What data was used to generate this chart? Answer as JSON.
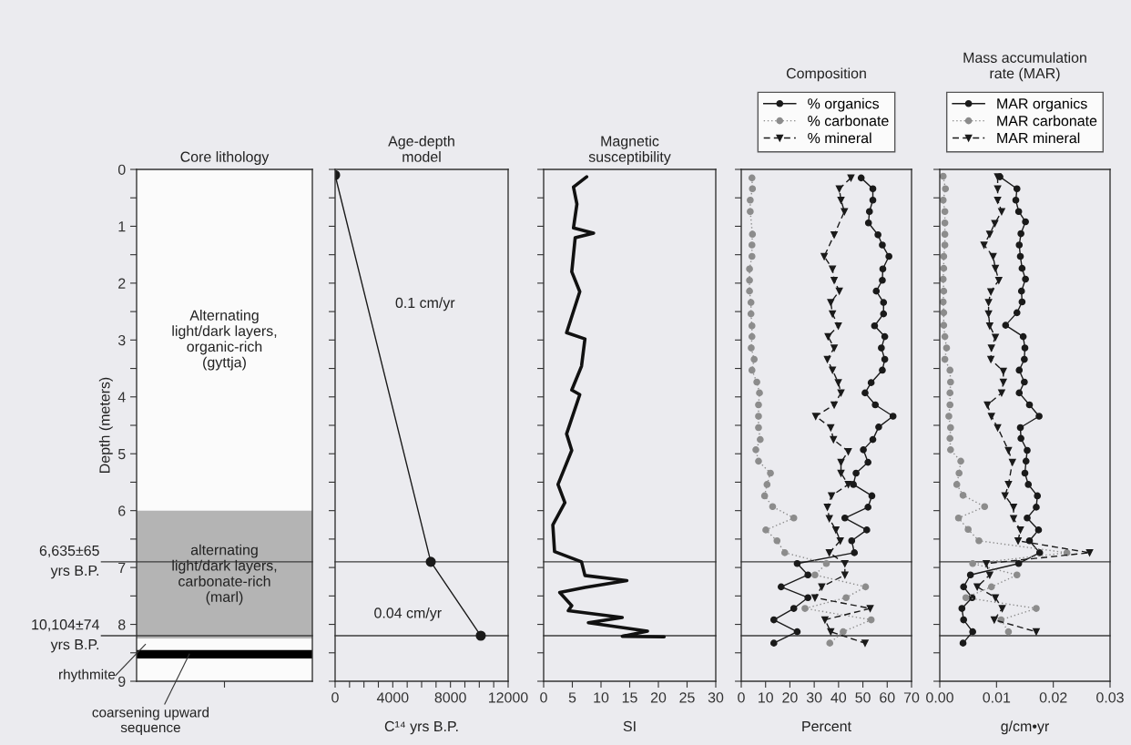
{
  "chart_data": [
    {
      "type": "bar",
      "title": "Core lithology",
      "stacked": true,
      "categories": [
        null
      ],
      "series": [
        {
          "name": "Alternating\nlight/dark layers,\norganic-rich\n(gyttja)",
          "color": "#fbfbfb",
          "values": [
            6.0
          ]
        },
        {
          "name": "alternating\nlight/dark layers,\ncarbonate-rich\n(marl)",
          "color": "#b4b4b4",
          "values": [
            2.25
          ]
        },
        {
          "name": "rhythmite",
          "color": "#fbfbfb",
          "values": [
            0.2
          ]
        },
        {
          "name": "coarsening upward\nsequence",
          "color": "#000000",
          "values": [
            0.15
          ]
        },
        {
          "color": "#fbfbfb",
          "values": [
            0.4
          ]
        }
      ],
      "ylabel": "Depth (meters)",
      "ylim": [
        9,
        0
      ],
      "yticks": [
        0,
        {
          "value": 0.5,
          "label": null
        },
        1,
        {
          "value": 1.5,
          "label": null
        },
        2,
        {
          "value": 2.5,
          "label": null
        },
        3,
        {
          "value": 3.5,
          "label": null
        },
        4,
        {
          "value": 4.5,
          "label": null
        },
        5,
        {
          "value": 5.5,
          "label": null
        },
        6,
        {
          "value": 6.5,
          "label": null
        },
        7,
        {
          "value": 7.5,
          "label": null
        },
        8,
        {
          "value": 8.5,
          "label": null
        },
        9
      ],
      "tick_labels": "y",
      "ref_lines": [
        {
          "axis": "y",
          "value": 6.9,
          "label": "6,635±65\nyrs B.P.",
          "color": "#3c3c3c"
        },
        {
          "axis": "y",
          "value": 8.2,
          "label": "10,104±74\nyrs B.P.",
          "color": "#3c3c3c"
        }
      ]
    },
    {
      "type": "line",
      "title": "Age-depth\nmodel",
      "xlabel": "C¹⁴ yrs B.P.",
      "xlim": [
        0,
        12000
      ],
      "ylim": [
        9,
        0
      ],
      "xticks": [
        0,
        {
          "value": 1000,
          "label": null
        },
        {
          "value": 2000,
          "label": null
        },
        {
          "value": 3000,
          "label": null
        },
        4000,
        {
          "value": 5000,
          "label": null
        },
        {
          "value": 6000,
          "label": null
        },
        {
          "value": 7000,
          "label": null
        },
        8000,
        {
          "value": 9000,
          "label": null
        },
        {
          "value": 10000,
          "label": null
        },
        {
          "value": 11000,
          "label": null
        },
        12000
      ],
      "yticks": [
        0,
        0.5,
        1,
        1.5,
        2,
        2.5,
        3,
        3.5,
        4,
        4.5,
        5,
        5.5,
        6,
        6.5,
        7,
        7.5,
        8,
        8.5,
        9
      ],
      "tick_labels": "x",
      "marker": "circle",
      "line_style": "solid",
      "series": [
        {
          "color": "#1a1a1a",
          "x": [
            0,
            6635,
            10104
          ],
          "values": [
            0.1,
            6.9,
            8.2
          ]
        }
      ],
      "ref_lines": [
        {
          "axis": "y",
          "value": 6.9,
          "color": "#3c3c3c"
        },
        {
          "axis": "y",
          "value": 8.2,
          "color": "#3c3c3c"
        }
      ],
      "annotations": [
        "0.1 cm/yr",
        "0.04 cm/yr"
      ]
    },
    {
      "type": "line",
      "title": "Magnetic\nsusceptibility",
      "xlabel": "SI",
      "xlim": [
        0,
        30
      ],
      "ylim": [
        9,
        0
      ],
      "xticks": [
        0,
        5,
        10,
        15,
        20,
        25,
        30
      ],
      "yticks": [
        0,
        0.5,
        1,
        1.5,
        2,
        2.5,
        3,
        3.5,
        4,
        4.5,
        5,
        5.5,
        6,
        6.5,
        7,
        7.5,
        8,
        8.5,
        9
      ],
      "tick_labels": "x",
      "marker": "none",
      "line_style": "solid",
      "series": [
        {
          "color": "#111111",
          "x": [
            7.5,
            5.2,
            5.8,
            5.2,
            8.7,
            5.5,
            4.9,
            6.3,
            4.0,
            7.2,
            6.6,
            4.9,
            6.3,
            4.0,
            4.9,
            2.5,
            3.7,
            1.6,
            1.9,
            6.6,
            7.2,
            14.5,
            7.2,
            2.8,
            4.9,
            4.3,
            13.7,
            7.8,
            18.1,
            13.7,
            21
          ],
          "values": [
            0.13,
            0.31,
            0.61,
            1.03,
            1.12,
            1.2,
            1.8,
            2.15,
            2.87,
            2.98,
            3.46,
            3.88,
            3.96,
            4.65,
            4.94,
            5.54,
            5.86,
            6.25,
            6.72,
            6.9,
            7.14,
            7.23,
            7.35,
            7.44,
            7.67,
            7.76,
            7.88,
            7.97,
            8.12,
            8.21,
            8.22
          ]
        }
      ],
      "ref_lines": [
        {
          "axis": "y",
          "value": 6.9,
          "color": "#3c3c3c"
        },
        {
          "axis": "y",
          "value": 8.2,
          "color": "#3c3c3c"
        }
      ]
    },
    {
      "type": "line",
      "title": "Composition",
      "xlabel": "Percent",
      "xlim": [
        0,
        70
      ],
      "ylim": [
        9,
        0
      ],
      "xticks": [
        0,
        10,
        20,
        30,
        40,
        50,
        60,
        70
      ],
      "yticks": [
        0,
        0.5,
        1,
        1.5,
        2,
        2.5,
        3,
        3.5,
        4,
        4.5,
        5,
        5.5,
        6,
        6.5,
        7,
        7.5,
        8,
        8.5,
        9
      ],
      "tick_labels": "x",
      "legend": "top",
      "series": [
        {
          "name": "% organics",
          "color": "#1a1a1a",
          "marker": "circle",
          "line_style": "solid",
          "x": [
            49.3,
            54.1,
            54.1,
            52.7,
            52.3,
            56.2,
            58.0,
            60.7,
            58.2,
            58.0,
            55.5,
            58.5,
            58.5,
            54.8,
            59.0,
            57.6,
            59.0,
            58.0,
            53.4,
            50.9,
            55.1,
            62.4,
            56.5,
            54.1,
            50.2,
            52.1,
            47.2,
            46.1,
            53.7,
            52.1,
            42.6,
            51.6,
            45.4,
            46.5,
            23.0,
            27.4,
            16.4,
            27.4,
            21.6,
            13.4,
            23.0,
            13.4
          ],
          "values": [
            0.15,
            0.34,
            0.54,
            0.74,
            0.94,
            1.15,
            1.33,
            1.53,
            1.75,
            1.95,
            2.14,
            2.34,
            2.54,
            2.75,
            2.94,
            3.14,
            3.34,
            3.53,
            3.75,
            3.93,
            4.14,
            4.34,
            4.53,
            4.75,
            4.93,
            5.15,
            5.34,
            5.54,
            5.74,
            5.94,
            6.13,
            6.34,
            6.53,
            6.74,
            6.93,
            7.13,
            7.34,
            7.53,
            7.72,
            7.92,
            8.13,
            8.33
          ]
        },
        {
          "name": "% carbonate",
          "color": "#8c8c8c",
          "marker": "circle",
          "line_style": "dotted",
          "x": [
            4.4,
            4.6,
            3.7,
            3.7,
            4.6,
            4.4,
            4.4,
            3.4,
            3.4,
            3.4,
            4.0,
            4.0,
            4.4,
            4.4,
            4.1,
            5.3,
            4.4,
            6.4,
            7.5,
            7.1,
            7.1,
            7.1,
            7.8,
            6.0,
            7.1,
            12.0,
            10.6,
            9.6,
            12.9,
            21.6,
            10.1,
            14.7,
            17.9,
            35.0,
            30.3,
            51.1,
            43.1,
            26.2,
            53.4,
            41.9,
            36.4
          ],
          "values": [
            0.15,
            0.34,
            0.54,
            0.74,
            1.14,
            1.33,
            1.53,
            1.75,
            1.95,
            2.14,
            2.34,
            2.54,
            2.75,
            2.94,
            3.14,
            3.34,
            3.53,
            3.74,
            3.93,
            4.14,
            4.34,
            4.54,
            4.75,
            4.93,
            5.13,
            5.34,
            5.54,
            5.74,
            5.93,
            6.13,
            6.34,
            6.53,
            6.74,
            6.93,
            7.13,
            7.34,
            7.53,
            7.72,
            7.92,
            8.13,
            8.33
          ]
        },
        {
          "name": "% mineral",
          "color": "#1a1a1a",
          "marker": "triangle",
          "line_style": "dashed",
          "x": [
            45.1,
            40.3,
            41.0,
            42.4,
            38.2,
            34.1,
            37.5,
            38.2,
            40.3,
            36.8,
            37.5,
            39.9,
            35.7,
            38.2,
            35.4,
            37.5,
            39.9,
            41.0,
            38.2,
            30.6,
            36.8,
            37.9,
            44.0,
            41.0,
            41.0,
            44.0,
            37.1,
            35.4,
            36.2,
            38.9,
            40.7,
            36.2,
            42.6,
            42.6,
            33.1,
            30.3,
            53.0,
            34.4,
            36.8,
            50.9
          ],
          "values": [
            0.15,
            0.34,
            0.54,
            0.74,
            1.15,
            1.53,
            1.75,
            1.95,
            2.14,
            2.34,
            2.54,
            2.75,
            2.94,
            3.14,
            3.34,
            3.53,
            3.75,
            3.93,
            4.14,
            4.34,
            4.54,
            4.75,
            4.96,
            5.15,
            5.34,
            5.54,
            5.74,
            5.94,
            6.14,
            6.34,
            6.53,
            6.74,
            6.93,
            7.13,
            7.34,
            7.53,
            7.72,
            7.92,
            8.13,
            8.33
          ]
        }
      ],
      "ref_lines": [
        {
          "axis": "y",
          "value": 6.9,
          "color": "#3c3c3c"
        },
        {
          "axis": "y",
          "value": 8.2,
          "color": "#3c3c3c"
        }
      ]
    },
    {
      "type": "line",
      "title": "Mass accumulation\nrate (MAR)",
      "xlabel": "g/cm•yr",
      "xlim": [
        0,
        0.03
      ],
      "ylim": [
        9,
        0
      ],
      "xticks": [
        {
          "value": 0,
          "label": "0.00"
        },
        0.01,
        0.02,
        0.03
      ],
      "yticks": [
        0,
        0.5,
        1,
        1.5,
        2,
        2.5,
        3,
        3.5,
        4,
        4.5,
        5,
        5.5,
        6,
        6.5,
        7,
        7.5,
        8,
        8.5,
        9
      ],
      "tick_labels": "x",
      "legend": "top",
      "series": [
        {
          "name": "MAR organics",
          "color": "#1a1a1a",
          "marker": "circle",
          "line_style": "solid",
          "x": [
            0.0106,
            0.0136,
            0.0134,
            0.0139,
            0.0151,
            0.0143,
            0.014,
            0.0142,
            0.0145,
            0.0151,
            0.0144,
            0.0145,
            0.0136,
            0.0116,
            0.0147,
            0.015,
            0.0149,
            0.014,
            0.0149,
            0.014,
            0.0158,
            0.0175,
            0.0142,
            0.0143,
            0.0154,
            0.0152,
            0.015,
            0.0156,
            0.0172,
            0.017,
            0.0154,
            0.0174,
            0.0158,
            0.0176,
            0.0139,
            0.0054,
            0.0042,
            0.0057,
            0.0039,
            0.0042,
            0.0058,
            0.0041
          ],
          "values": [
            0.13,
            0.34,
            0.54,
            0.74,
            0.92,
            1.13,
            1.33,
            1.53,
            1.74,
            1.93,
            2.14,
            2.33,
            2.52,
            2.74,
            2.94,
            3.14,
            3.34,
            3.53,
            3.74,
            3.93,
            4.14,
            4.34,
            4.54,
            4.73,
            4.94,
            5.13,
            5.34,
            5.54,
            5.74,
            5.94,
            6.13,
            6.34,
            6.53,
            6.74,
            6.93,
            7.13,
            7.34,
            7.53,
            7.72,
            7.92,
            8.13,
            8.33
          ]
        },
        {
          "name": "MAR carbonate",
          "color": "#8c8c8c",
          "marker": "circle",
          "line_style": "dotted",
          "x": [
            0.0006,
            0.001,
            0.0006,
            0.0009,
            0.0009,
            0.0009,
            0.0009,
            0.0007,
            0.0007,
            0.0006,
            0.0007,
            0.0006,
            0.0007,
            0.0007,
            0.0009,
            0.0012,
            0.0009,
            0.0018,
            0.0019,
            0.0018,
            0.0018,
            0.0016,
            0.0019,
            0.0018,
            0.0019,
            0.0037,
            0.0034,
            0.003,
            0.0041,
            0.0079,
            0.0033,
            0.005,
            0.0069,
            0.0224,
            0.0058,
            0.0136,
            0.0091,
            0.0046,
            0.017,
            0.0108,
            0.0121
          ],
          "values": [
            0.12,
            0.34,
            0.54,
            0.74,
            0.94,
            1.14,
            1.33,
            1.53,
            1.74,
            1.93,
            2.14,
            2.33,
            2.52,
            2.74,
            2.94,
            3.14,
            3.34,
            3.53,
            3.74,
            3.93,
            4.14,
            4.34,
            4.54,
            4.73,
            4.93,
            5.13,
            5.34,
            5.54,
            5.73,
            5.93,
            6.13,
            6.33,
            6.53,
            6.74,
            6.93,
            7.13,
            7.34,
            7.53,
            7.72,
            7.92,
            8.13
          ]
        },
        {
          "name": "MAR mineral",
          "color": "#1a1a1a",
          "marker": "triangle",
          "line_style": "dashed",
          "x": [
            0.0102,
            0.0102,
            0.0102,
            0.0109,
            0.0097,
            0.0088,
            0.0078,
            0.0094,
            0.0098,
            0.0104,
            0.009,
            0.0086,
            0.0086,
            0.0088,
            0.0098,
            0.0091,
            0.009,
            0.0112,
            0.0112,
            0.0109,
            0.0084,
            0.0091,
            0.0102,
            0.0121,
            0.0128,
            0.0121,
            0.0115,
            0.013,
            0.013,
            0.0142,
            0.0138,
            0.0264,
            0.0082,
            0.0088,
            0.0066,
            0.0098,
            0.011,
            0.0096,
            0.017
          ],
          "values": [
            0.13,
            0.34,
            0.54,
            0.74,
            0.95,
            1.14,
            1.33,
            1.53,
            1.74,
            1.95,
            2.15,
            2.34,
            2.54,
            2.75,
            2.95,
            3.14,
            3.34,
            3.55,
            3.74,
            3.93,
            4.14,
            4.34,
            4.54,
            4.94,
            5.15,
            5.54,
            5.74,
            5.94,
            6.14,
            6.34,
            6.53,
            6.74,
            6.93,
            7.13,
            7.34,
            7.53,
            7.72,
            7.92,
            8.13
          ]
        }
      ],
      "ref_lines": [
        {
          "axis": "y",
          "value": 6.9,
          "color": "#3c3c3c"
        },
        {
          "axis": "y",
          "value": 8.2,
          "color": "#3c3c3c"
        }
      ]
    }
  ]
}
